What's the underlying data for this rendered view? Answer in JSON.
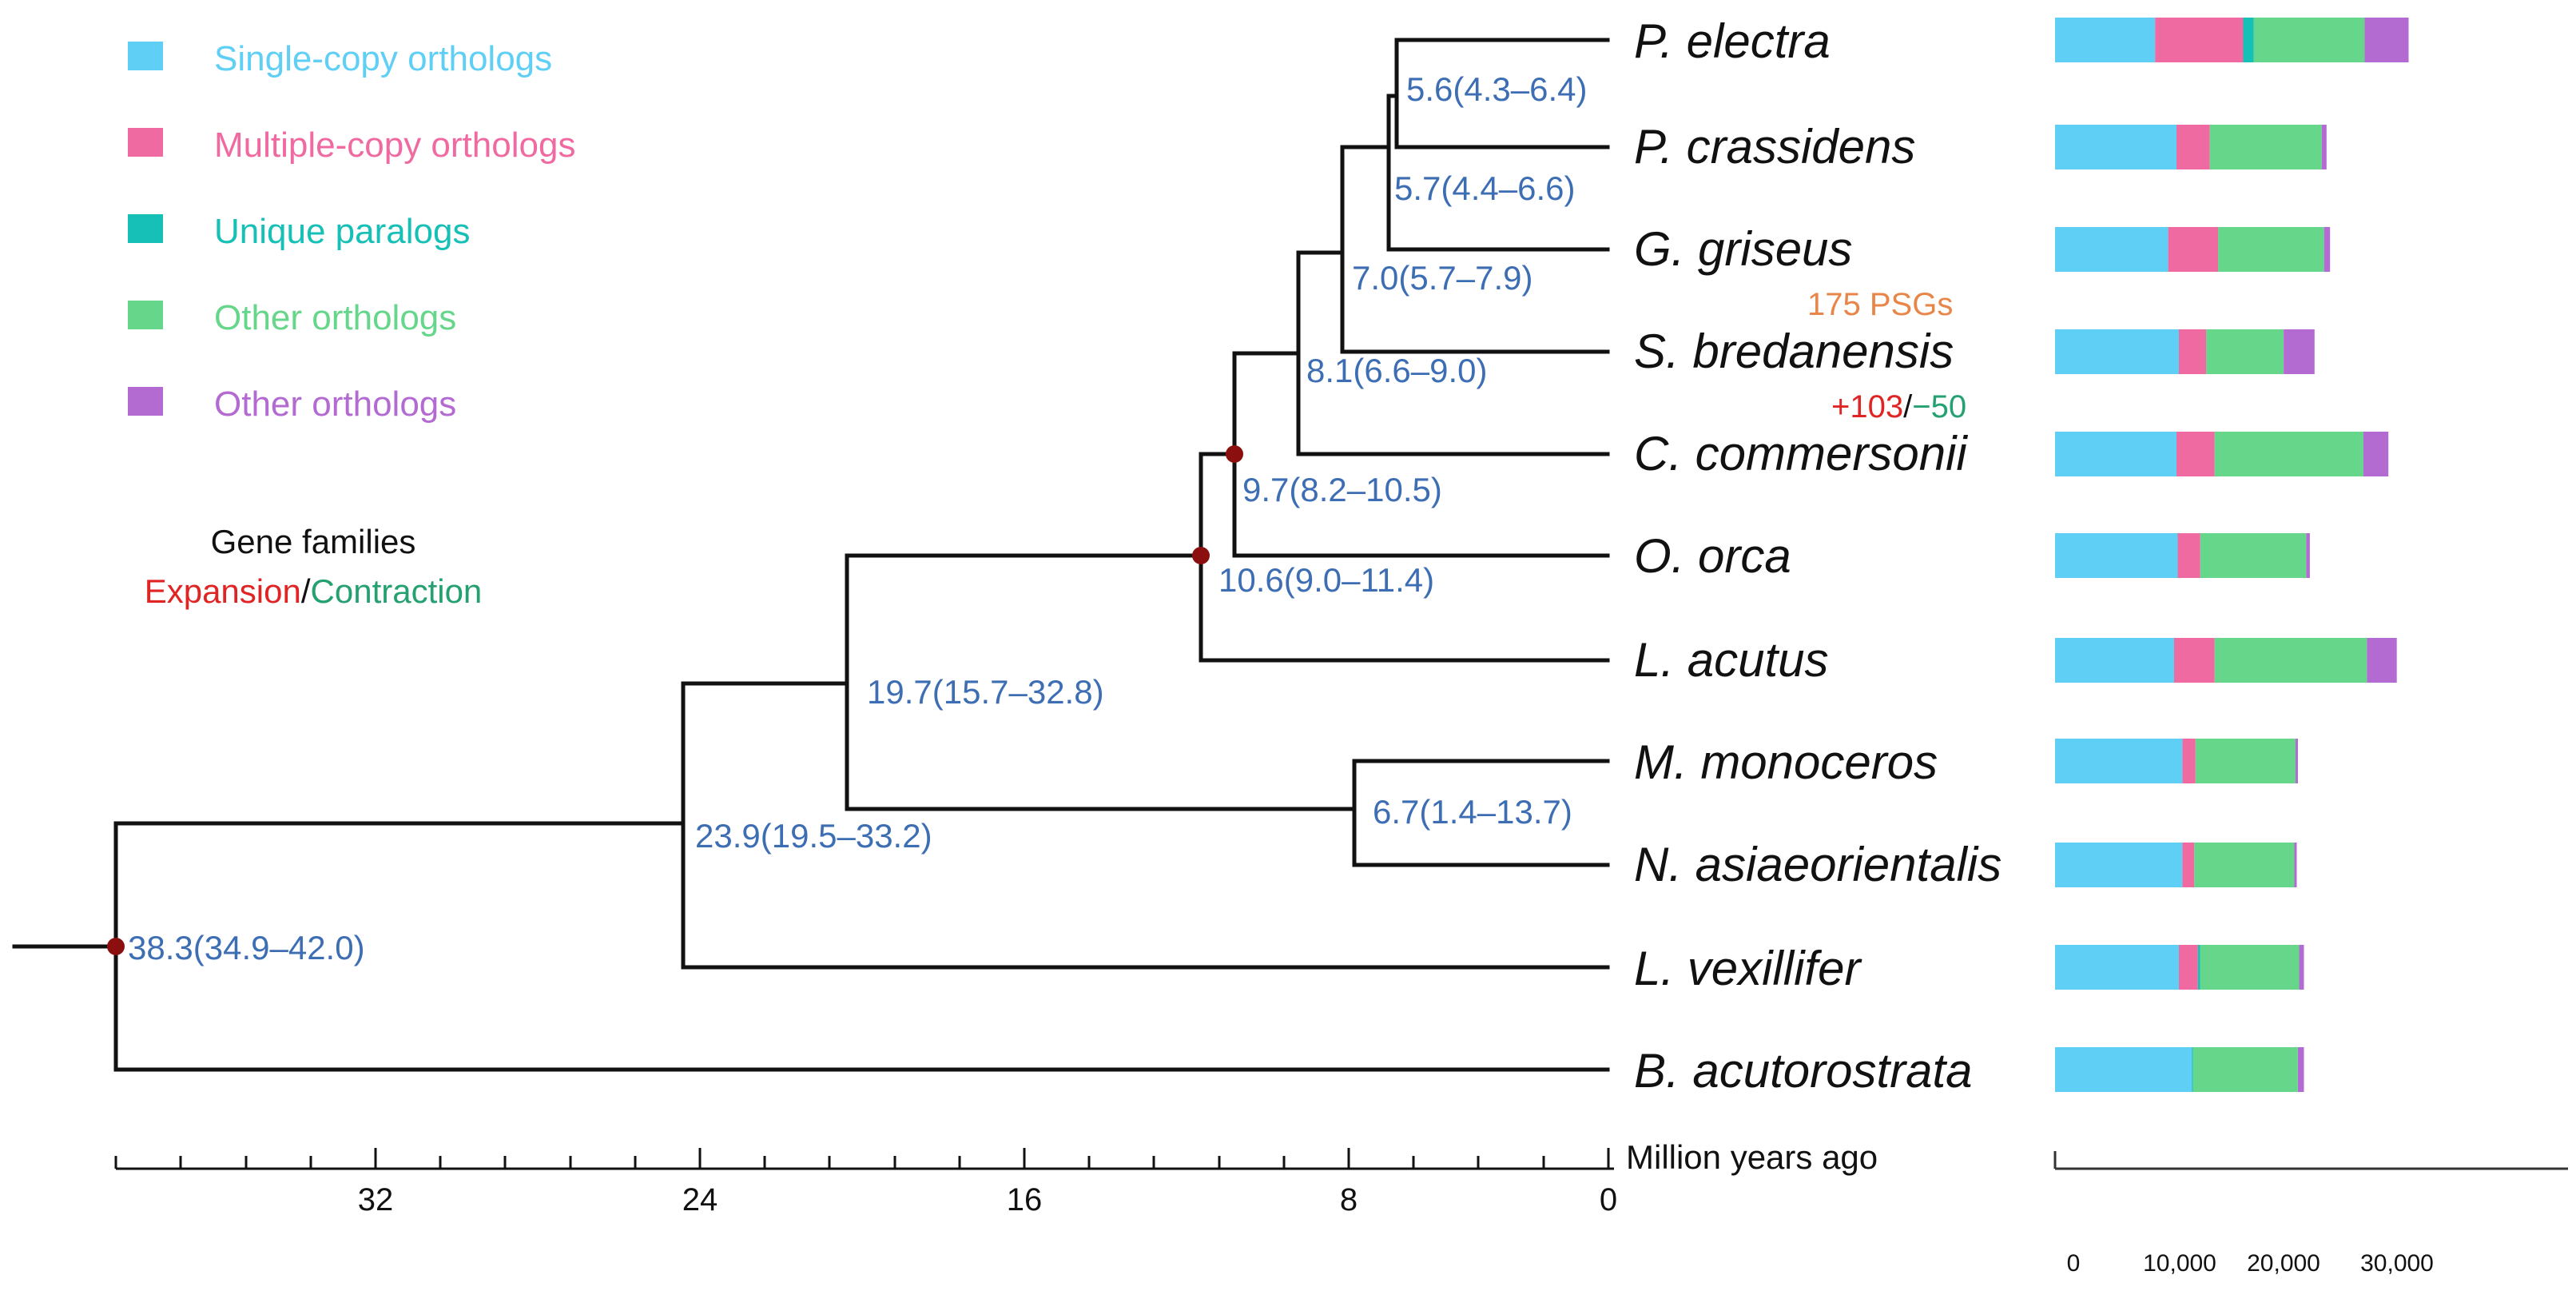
{
  "legend": [
    {
      "label": "Single-copy orthologs",
      "color": "#5fcff5"
    },
    {
      "label": "Multiple-copy orthologs",
      "color": "#f06aa2"
    },
    {
      "label": "Unique paralogs",
      "color": "#16c0b7"
    },
    {
      "label": "Other orthologs",
      "color": "#66d68b"
    },
    {
      "label": "Other orthologs",
      "color": "#b36bd2"
    }
  ],
  "gene_families": {
    "title": "Gene families",
    "expansion": "Expansion",
    "separator": "/",
    "contraction": "Contraction",
    "expansion_color": "#e02424",
    "contraction_color": "#24a071"
  },
  "annotations": {
    "psgs": "175 PSGs",
    "psgs_color": "#e8864a",
    "expansion_count": "+103",
    "separator": "/",
    "contraction_count": "−50"
  },
  "species": [
    "P. electra",
    "P. crassidens",
    "G. griseus",
    "S. bredanensis",
    "C. commersonii",
    "O. orca",
    "L. acutus",
    "M. monoceros",
    "N. asiaeorientalis",
    "L. vexillifer",
    "B. acutorostrata"
  ],
  "node_labels": [
    "5.6(4.3–6.4)",
    "5.7(4.4–6.6)",
    "7.0(5.7–7.9)",
    "8.1(6.6–9.0)",
    "9.7(8.2–10.5)",
    "10.6(9.0–11.4)",
    "19.7(15.7–32.8)",
    "6.7(1.4–13.7)",
    "23.9(19.5–33.2)",
    "38.3(34.9–42.0)"
  ],
  "time_axis": {
    "title": "Million years ago",
    "ticks": [
      "32",
      "24",
      "16",
      "8",
      "0"
    ]
  },
  "bar_axis": {
    "ticks": [
      "0",
      "10,000",
      "20,000",
      "30,000"
    ]
  },
  "chart_data": {
    "type": "bar",
    "orientation": "horizontal",
    "stacked": true,
    "categories": [
      "P. electra",
      "P. crassidens",
      "G. griseus",
      "S. bredanensis",
      "C. commersonii",
      "O. orca",
      "L. acutus",
      "M. monoceros",
      "N. asiaeorientalis",
      "L. vexillifer",
      "B. acutorostrata"
    ],
    "xlim": [
      0,
      36000
    ],
    "series": [
      {
        "name": "Single-copy orthologs",
        "color": "#5fcff5",
        "values": [
          8400,
          10200,
          9500,
          10400,
          10200,
          10300,
          10000,
          10700,
          10700,
          10400,
          11500
        ]
      },
      {
        "name": "Multiple-copy orthologs",
        "color": "#f06aa2",
        "values": [
          7400,
          2800,
          4200,
          2300,
          3200,
          1900,
          3400,
          1100,
          1000,
          1600,
          0
        ]
      },
      {
        "name": "Unique paralogs",
        "color": "#16c0b7",
        "values": [
          900,
          0,
          0,
          0,
          0,
          0,
          0,
          0,
          0,
          200,
          100
        ]
      },
      {
        "name": "Other orthologs",
        "color": "#66d68b",
        "values": [
          9300,
          9400,
          8900,
          6500,
          12500,
          8900,
          12800,
          8400,
          8400,
          8300,
          8800
        ]
      },
      {
        "name": "Other orthologs",
        "color": "#b36bd2",
        "values": [
          3700,
          400,
          500,
          2600,
          2100,
          300,
          2500,
          200,
          200,
          400,
          500
        ]
      }
    ]
  }
}
